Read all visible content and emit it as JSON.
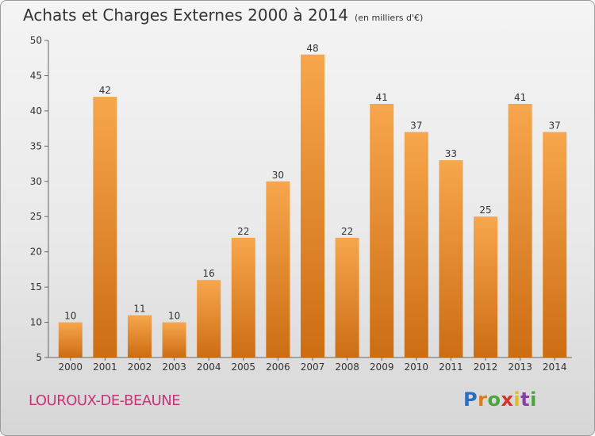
{
  "header": {
    "title": "Achats et Charges Externes 2000 à 2014",
    "subtitle": "(en milliers d'€)"
  },
  "footer": {
    "town": "LOUROUX-DE-BEAUNE",
    "logo_letters": [
      "P",
      "r",
      "o",
      "x",
      "i",
      "t",
      "i"
    ]
  },
  "chart_data": {
    "type": "bar",
    "title": "Achats et Charges Externes 2000 à 2014",
    "subtitle": "(en milliers d'€)",
    "xlabel": "",
    "ylabel": "",
    "categories": [
      "2000",
      "2001",
      "2002",
      "2003",
      "2004",
      "2005",
      "2006",
      "2007",
      "2008",
      "2009",
      "2010",
      "2011",
      "2012",
      "2013",
      "2014"
    ],
    "values": [
      10,
      42,
      11,
      10,
      16,
      22,
      30,
      48,
      22,
      41,
      37,
      33,
      25,
      41,
      37
    ],
    "ylim": [
      5,
      50
    ],
    "yticks": [
      5,
      10,
      15,
      20,
      25,
      30,
      35,
      40,
      45,
      50
    ],
    "grid": false,
    "colors": {
      "bar_top": "#f7a64d",
      "bar_bottom": "#cc6d12",
      "axis": "#666666"
    }
  }
}
